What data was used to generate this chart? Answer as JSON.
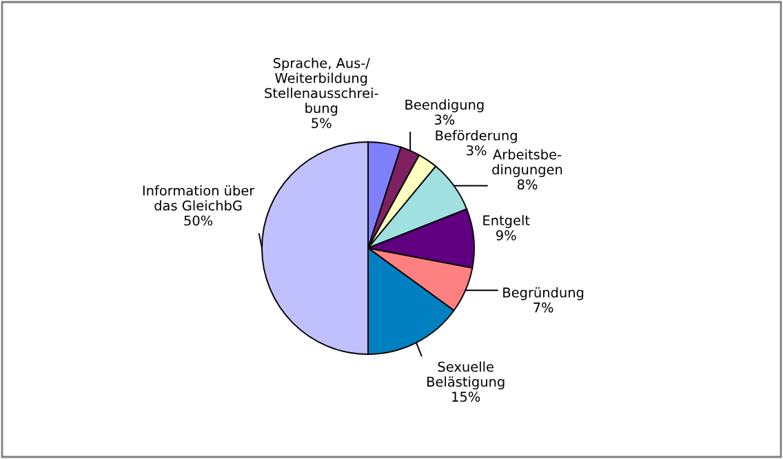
{
  "chart_data": {
    "type": "pie",
    "categories": [
      "Sprache, Aus-/\nWeiterbildung\nStellenausschrei-\nbung",
      "Beendigung",
      "Beförderung",
      "Arbeitsbe-\ndingungen",
      "Entgelt",
      "Begründung",
      "Sexuelle\nBelästigung",
      "Information über\ndas GleichbG"
    ],
    "values": [
      5,
      3,
      3,
      8,
      9,
      7,
      15,
      50
    ],
    "colors": [
      "#8080ff",
      "#7f2060",
      "#ffffc0",
      "#a0e0e0",
      "#600080",
      "#ff8080",
      "#0080c0",
      "#c0c0ff"
    ],
    "value_labels": [
      "5%",
      "3%",
      "3%",
      "8%",
      "9%",
      "7%",
      "15%",
      "50%"
    ]
  }
}
